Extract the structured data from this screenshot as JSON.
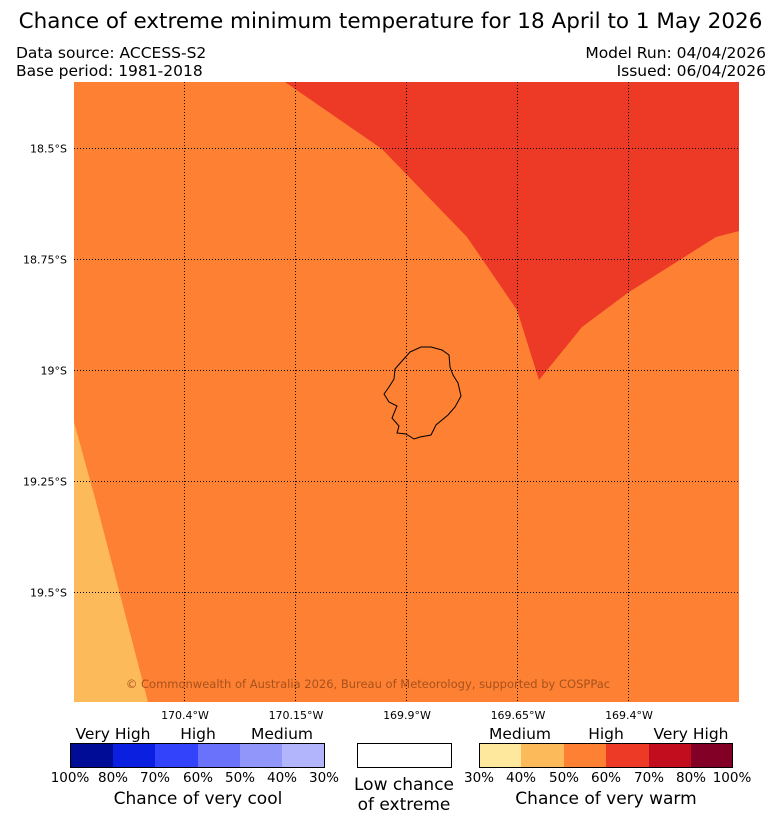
{
  "header": {
    "title": "Chance of extreme minimum temperature for 18 April to 1 May 2026",
    "data_source": "Data source: ACCESS-S2",
    "base_period": "Base period: 1981-2018",
    "model_run": "Model Run: 04/04/2026",
    "issued": "Issued: 06/04/2026"
  },
  "map": {
    "copyright": "© Commonwealth of Australia 2026, Bureau of Meteorology, supported by COSPPac",
    "lat_labels": [
      "18.5°S",
      "18.75°S",
      "19°S",
      "19.25°S",
      "19.5°S"
    ],
    "lon_labels": [
      "170.4°W",
      "170.15°W",
      "169.9°W",
      "169.65°W",
      "169.4°W"
    ],
    "regions": [
      {
        "category": "high-warm-50-60",
        "color": "#fd8033"
      },
      {
        "category": "high-warm-60-70",
        "color": "#ec3a26"
      },
      {
        "category": "medium-warm-40-50",
        "color": "#fdba5a"
      }
    ]
  },
  "legend": {
    "cool": {
      "levels": [
        "Very High",
        "High",
        "Medium"
      ],
      "colors": [
        "#000c96",
        "#0a1fe0",
        "#3243fb",
        "#6a72fb",
        "#9196fb",
        "#b2b4fc"
      ],
      "ticks": [
        "100%",
        "80%",
        "70%",
        "60%",
        "50%",
        "40%",
        "30%"
      ],
      "caption": "Chance of very cool"
    },
    "neutral": {
      "color": "#ffffff",
      "caption_line1": "Low chance",
      "caption_line2": "of extreme"
    },
    "warm": {
      "levels": [
        "Medium",
        "High",
        "Very High"
      ],
      "colors": [
        "#fee89d",
        "#fdba5a",
        "#fd8033",
        "#ec3a26",
        "#c20d1e",
        "#820026"
      ],
      "ticks": [
        "30%",
        "40%",
        "50%",
        "60%",
        "70%",
        "80%",
        "100%"
      ],
      "caption": "Chance of very warm"
    }
  }
}
